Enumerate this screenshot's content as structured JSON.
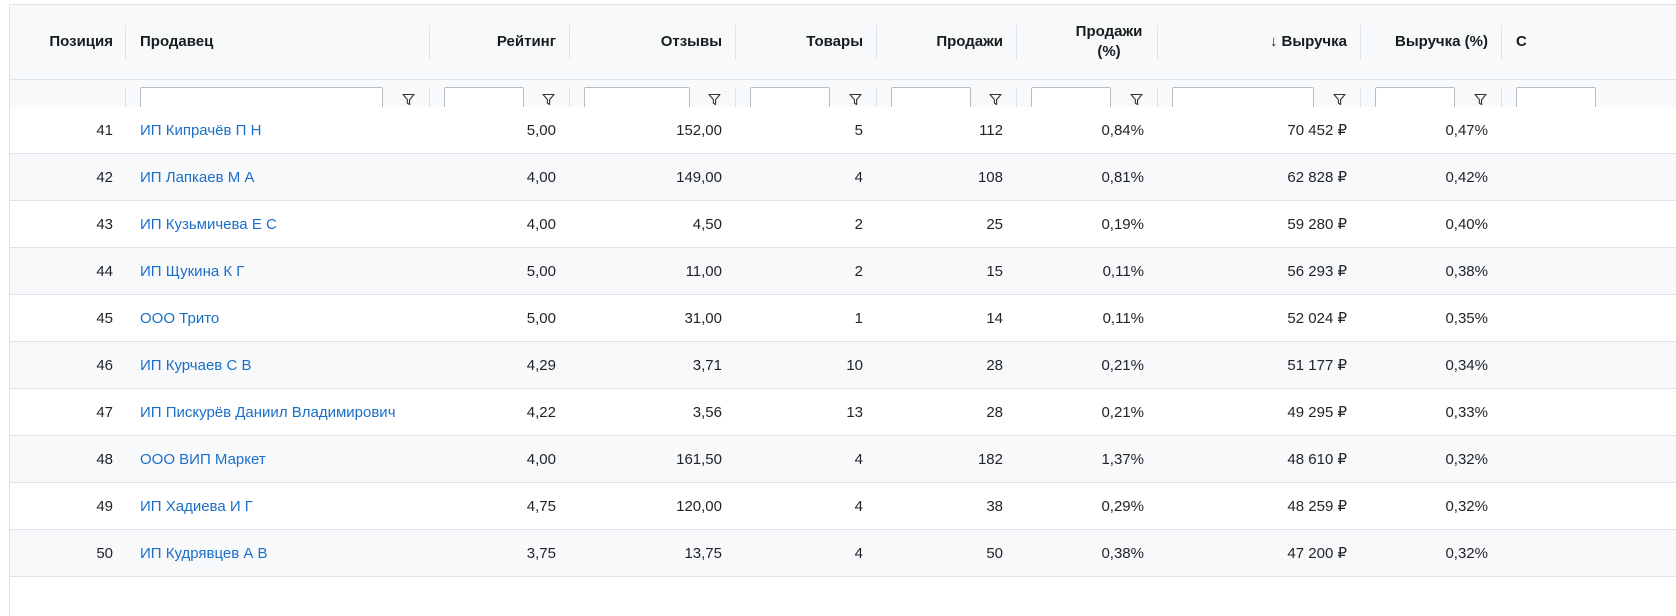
{
  "columns": [
    {
      "key": "position",
      "label": "Позиция",
      "align": "right"
    },
    {
      "key": "seller",
      "label": "Продавец",
      "align": "left"
    },
    {
      "key": "rating",
      "label": "Рейтинг",
      "align": "right"
    },
    {
      "key": "reviews",
      "label": "Отзывы",
      "align": "right"
    },
    {
      "key": "products",
      "label": "Товары",
      "align": "right"
    },
    {
      "key": "sales",
      "label": "Продажи",
      "align": "right"
    },
    {
      "key": "sales_pct",
      "label": "Продажи (%)",
      "align": "right"
    },
    {
      "key": "revenue",
      "label": "Выручка",
      "align": "right",
      "sorted": "desc",
      "sort_icon": "arrow-down-icon",
      "sort_glyph": "↓"
    },
    {
      "key": "revenue_pct",
      "label": "Выручка (%)",
      "align": "right"
    },
    {
      "key": "more",
      "label": "С",
      "align": "left"
    }
  ],
  "rows": [
    {
      "position": "41",
      "seller": "ИП Кипрачёв П Н",
      "rating": "5,00",
      "reviews": "152,00",
      "products": "5",
      "sales": "112",
      "sales_pct": "0,84%",
      "revenue": "70 452 ₽",
      "revenue_pct": "0,47%"
    },
    {
      "position": "42",
      "seller": "ИП Лапкаев М А",
      "rating": "4,00",
      "reviews": "149,00",
      "products": "4",
      "sales": "108",
      "sales_pct": "0,81%",
      "revenue": "62 828 ₽",
      "revenue_pct": "0,42%"
    },
    {
      "position": "43",
      "seller": "ИП Кузьмичева Е С",
      "rating": "4,00",
      "reviews": "4,50",
      "products": "2",
      "sales": "25",
      "sales_pct": "0,19%",
      "revenue": "59 280 ₽",
      "revenue_pct": "0,40%"
    },
    {
      "position": "44",
      "seller": "ИП Щукина К Г",
      "rating": "5,00",
      "reviews": "11,00",
      "products": "2",
      "sales": "15",
      "sales_pct": "0,11%",
      "revenue": "56 293 ₽",
      "revenue_pct": "0,38%"
    },
    {
      "position": "45",
      "seller": "ООО Трито",
      "rating": "5,00",
      "reviews": "31,00",
      "products": "1",
      "sales": "14",
      "sales_pct": "0,11%",
      "revenue": "52 024 ₽",
      "revenue_pct": "0,35%"
    },
    {
      "position": "46",
      "seller": "ИП Курчаев С В",
      "rating": "4,29",
      "reviews": "3,71",
      "products": "10",
      "sales": "28",
      "sales_pct": "0,21%",
      "revenue": "51 177 ₽",
      "revenue_pct": "0,34%"
    },
    {
      "position": "47",
      "seller": "ИП Пискурёв Даниил Владимирович",
      "rating": "4,22",
      "reviews": "3,56",
      "products": "13",
      "sales": "28",
      "sales_pct": "0,21%",
      "revenue": "49 295 ₽",
      "revenue_pct": "0,33%"
    },
    {
      "position": "48",
      "seller": "ООО ВИП Маркет",
      "rating": "4,00",
      "reviews": "161,50",
      "products": "4",
      "sales": "182",
      "sales_pct": "1,37%",
      "revenue": "48 610 ₽",
      "revenue_pct": "0,32%"
    },
    {
      "position": "49",
      "seller": "ИП Хадиева И Г",
      "rating": "4,75",
      "reviews": "120,00",
      "products": "4",
      "sales": "38",
      "sales_pct": "0,29%",
      "revenue": "48 259 ₽",
      "revenue_pct": "0,32%"
    },
    {
      "position": "50",
      "seller": "ИП Кудрявцев А В",
      "rating": "3,75",
      "reviews": "13,75",
      "products": "4",
      "sales": "50",
      "sales_pct": "0,38%",
      "revenue": "47 200 ₽",
      "revenue_pct": "0,32%"
    }
  ],
  "filter_icon": "filter-icon",
  "colors": {
    "link": "#1c6fc9",
    "border": "#dde2eb",
    "header_bg": "#f8f9fa"
  }
}
